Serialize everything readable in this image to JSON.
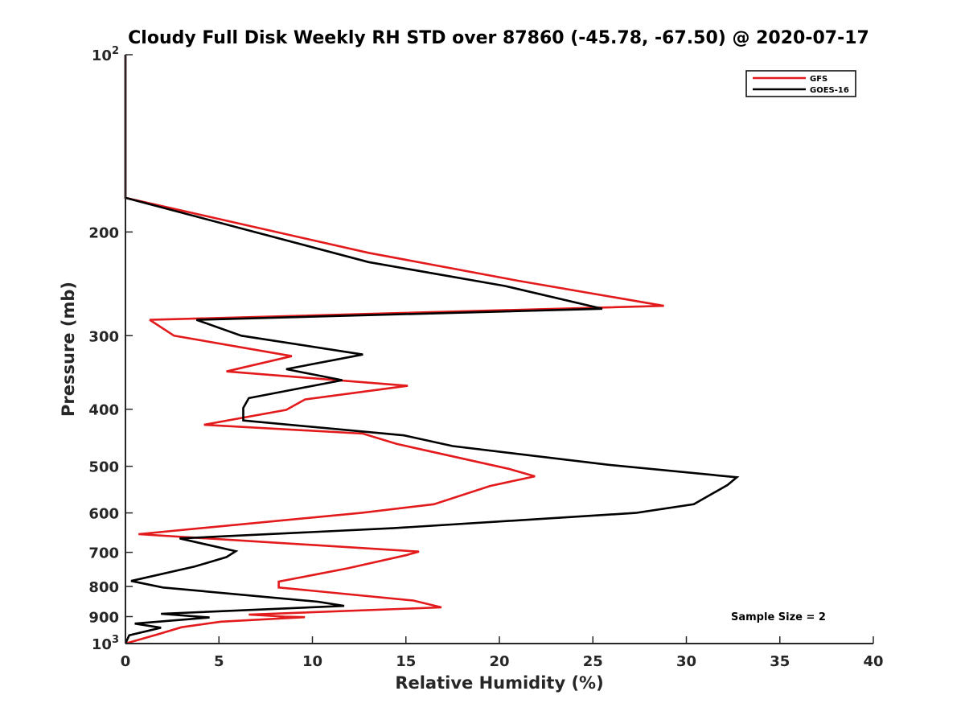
{
  "chart_data": {
    "type": "line",
    "title": "Cloudy Full Disk Weekly RH STD over 87860 (-45.78, -67.50) @ 2020-07-17",
    "xlabel": "Relative Humidity (%)",
    "ylabel": "Pressure (mb)",
    "xlim": [
      0,
      40
    ],
    "ylim": [
      100,
      1000
    ],
    "yscale": "log",
    "y_reversed": true,
    "grid": false,
    "legend_position": "top-right",
    "x_ticks": [
      {
        "value": 0,
        "label": "0"
      },
      {
        "value": 5,
        "label": "5"
      },
      {
        "value": 10,
        "label": "10"
      },
      {
        "value": 15,
        "label": "15"
      },
      {
        "value": 20,
        "label": "20"
      },
      {
        "value": 25,
        "label": "25"
      },
      {
        "value": 30,
        "label": "30"
      },
      {
        "value": 35,
        "label": "35"
      },
      {
        "value": 40,
        "label": "40"
      }
    ],
    "y_ticks": [
      {
        "value": 100,
        "label": "10",
        "sup": "2"
      },
      {
        "value": 200,
        "label": "200",
        "sup": ""
      },
      {
        "value": 300,
        "label": "300",
        "sup": ""
      },
      {
        "value": 400,
        "label": "400",
        "sup": ""
      },
      {
        "value": 500,
        "label": "500",
        "sup": ""
      },
      {
        "value": 600,
        "label": "600",
        "sup": ""
      },
      {
        "value": 700,
        "label": "700",
        "sup": ""
      },
      {
        "value": 800,
        "label": "800",
        "sup": ""
      },
      {
        "value": 900,
        "label": "900",
        "sup": ""
      },
      {
        "value": 1000,
        "label": "10",
        "sup": "3"
      }
    ],
    "annotation": "Sample Size = 2",
    "series": [
      {
        "name": "GFS",
        "color": "#e31a1c",
        "points": [
          [
            0,
            100
          ],
          [
            0,
            175
          ],
          [
            13,
            217
          ],
          [
            21,
            242
          ],
          [
            28.8,
            267
          ],
          [
            1.3,
            282
          ],
          [
            2.6,
            300
          ],
          [
            8.9,
            325
          ],
          [
            5.4,
            345
          ],
          [
            15.1,
            365
          ],
          [
            9.6,
            385
          ],
          [
            8.6,
            401
          ],
          [
            4.2,
            425
          ],
          [
            12.7,
            440
          ],
          [
            14.5,
            458
          ],
          [
            20.5,
            505
          ],
          [
            21.9,
            520
          ],
          [
            19.5,
            540
          ],
          [
            16.5,
            580
          ],
          [
            12.6,
            600
          ],
          [
            0.7,
            652
          ],
          [
            15.7,
            698
          ],
          [
            15.0,
            708
          ],
          [
            11.9,
            745
          ],
          [
            8.2,
            785
          ],
          [
            8.2,
            803
          ],
          [
            15.4,
            845
          ],
          [
            16.9,
            868
          ],
          [
            6.6,
            893
          ],
          [
            8.5,
            900
          ],
          [
            9.6,
            902
          ],
          [
            5.1,
            918
          ],
          [
            3.0,
            938
          ],
          [
            1.7,
            965
          ],
          [
            0,
            1000
          ]
        ]
      },
      {
        "name": "GOES-16",
        "color": "#000000",
        "points": [
          [
            0,
            100
          ],
          [
            0,
            175
          ],
          [
            13,
            225
          ],
          [
            20.3,
            247
          ],
          [
            25.5,
            270
          ],
          [
            3.8,
            282
          ],
          [
            6.2,
            300
          ],
          [
            12.7,
            323
          ],
          [
            8.6,
            342
          ],
          [
            11.6,
            357
          ],
          [
            6.6,
            383
          ],
          [
            6.3,
            398
          ],
          [
            6.3,
            418
          ],
          [
            14.9,
            443
          ],
          [
            17.5,
            462
          ],
          [
            25.8,
            497
          ],
          [
            32.7,
            522
          ],
          [
            32.2,
            538
          ],
          [
            30.4,
            580
          ],
          [
            27.3,
            600
          ],
          [
            14.3,
            637
          ],
          [
            2.9,
            663
          ],
          [
            5.9,
            697
          ],
          [
            5.4,
            713
          ],
          [
            3.7,
            740
          ],
          [
            0.3,
            783
          ],
          [
            2.0,
            803
          ],
          [
            10.3,
            849
          ],
          [
            11.7,
            863
          ],
          [
            1.9,
            890
          ],
          [
            4.5,
            903
          ],
          [
            0.5,
            925
          ],
          [
            1.9,
            940
          ],
          [
            0.2,
            968
          ],
          [
            0,
            1000
          ]
        ]
      }
    ]
  }
}
